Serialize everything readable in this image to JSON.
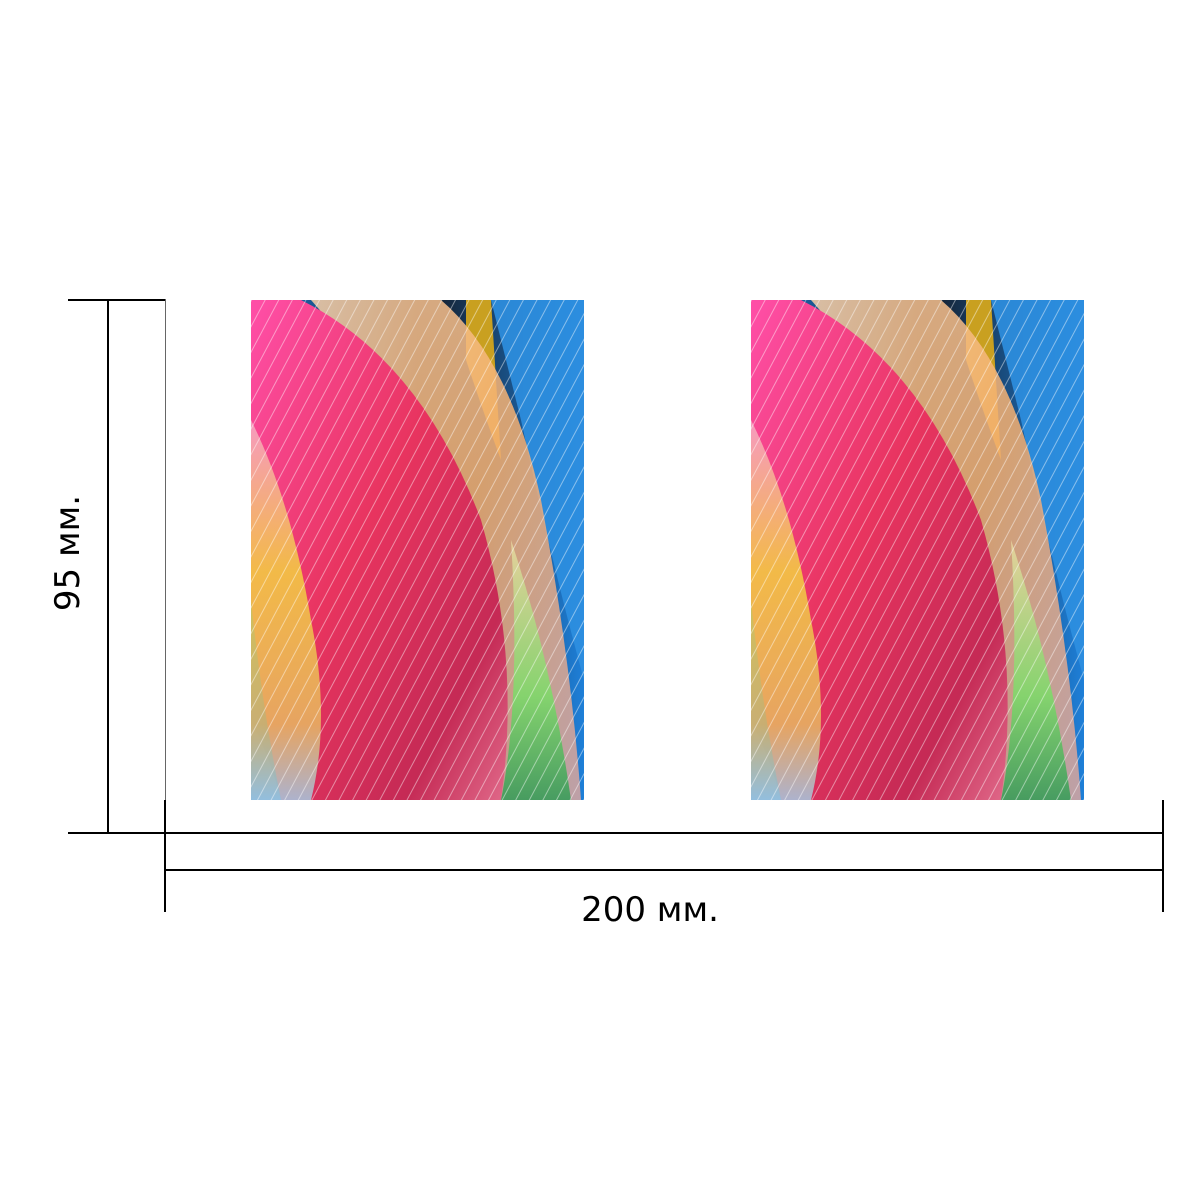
{
  "dimensions": {
    "width_label": "200 мм.",
    "height_label": "95 мм."
  },
  "panels": [
    {
      "name": "left-fabric-photo"
    },
    {
      "name": "right-fabric-photo"
    }
  ],
  "colors": {
    "line": "#000000",
    "background": "#ffffff",
    "fabric": [
      "#ff4fa8",
      "#e8345f",
      "#f6b070",
      "#f3d040",
      "#4fb8e0",
      "#1e7fd8",
      "#7ed96a",
      "#14161e"
    ]
  }
}
